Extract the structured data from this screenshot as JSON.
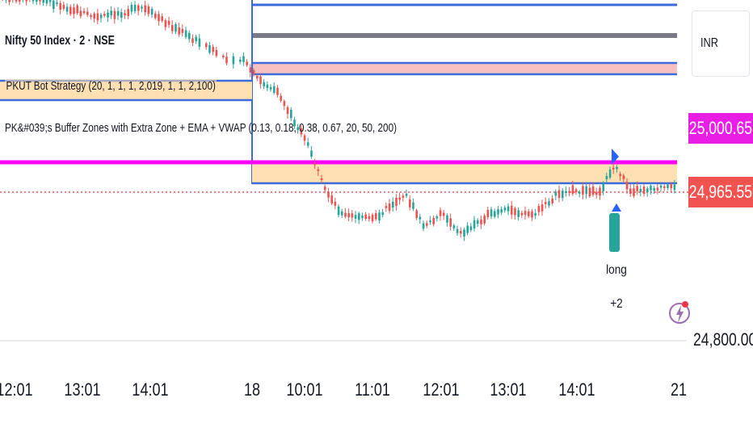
{
  "symbol_title": "Nifty 50 Index · 2 · NSE",
  "indicators": [
    "PKUT Bot Strategy (20, 1, 1, 1, 2,019, 1, 1, 2,100)",
    "PK&#039;s Buffer Zones with Extra Zone + EMA + VWAP (0.13, 0.18, 0.38, 0.67, 20, 50, 200)"
  ],
  "currency": "INR",
  "price_scale": {
    "buffer_line_price": "25,000.65",
    "last_price": "24,965.55",
    "axis_label": "24,800.00"
  },
  "time_axis": [
    "12:01",
    "13:01",
    "14:01",
    "18",
    "10:01",
    "11:01",
    "12:01",
    "13:01",
    "14:01",
    "21"
  ],
  "signal": {
    "text": "long",
    "qty": "+2"
  },
  "colors": {
    "magenta_line": "#ff00ff",
    "last_price_box": "#f05350",
    "buffer_box": "#e91ee5",
    "zone_fill": "#ffe0b2",
    "zone_border": "#3c6ad8",
    "grey_band": "#787b86",
    "pink_band": "#f7c1c1",
    "bull_candle": "#26a69a",
    "bear_candle": "#ef5350",
    "signal_box": "#26a69a"
  },
  "icons": {
    "signal_arrow": "arrow-up-icon",
    "lightning": "lightning-icon"
  }
}
